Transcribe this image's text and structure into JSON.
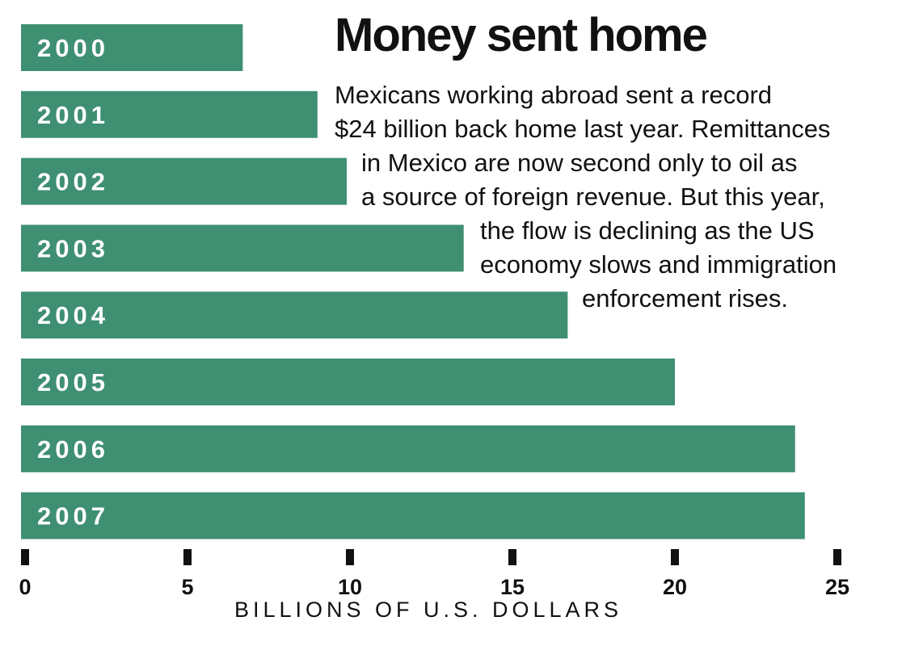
{
  "chart_data": {
    "type": "bar",
    "orientation": "horizontal",
    "title": "Money sent home",
    "subtitle_lines": [
      "Mexicans working abroad sent a record",
      "$24 billion back home last year. Remittances",
      "in Mexico are now second only to oil as",
      "a source of foreign revenue. But this year,",
      "the flow is declining as the US",
      "economy slows and immigration",
      "enforcement rises."
    ],
    "categories": [
      "2000",
      "2001",
      "2002",
      "2003",
      "2004",
      "2005",
      "2006",
      "2007"
    ],
    "values": [
      6.7,
      9.0,
      9.9,
      13.5,
      16.7,
      20.0,
      23.7,
      24.0
    ],
    "xlabel": "BILLIONS OF U.S. DOLLARS",
    "ylabel": "",
    "xlim": [
      0,
      25
    ],
    "x_ticks": [
      "0",
      "5",
      "10",
      "15",
      "20",
      "25"
    ],
    "grid": false,
    "legend": "none",
    "bar_color": "#3f8f72",
    "label_color": "#ffffff"
  }
}
